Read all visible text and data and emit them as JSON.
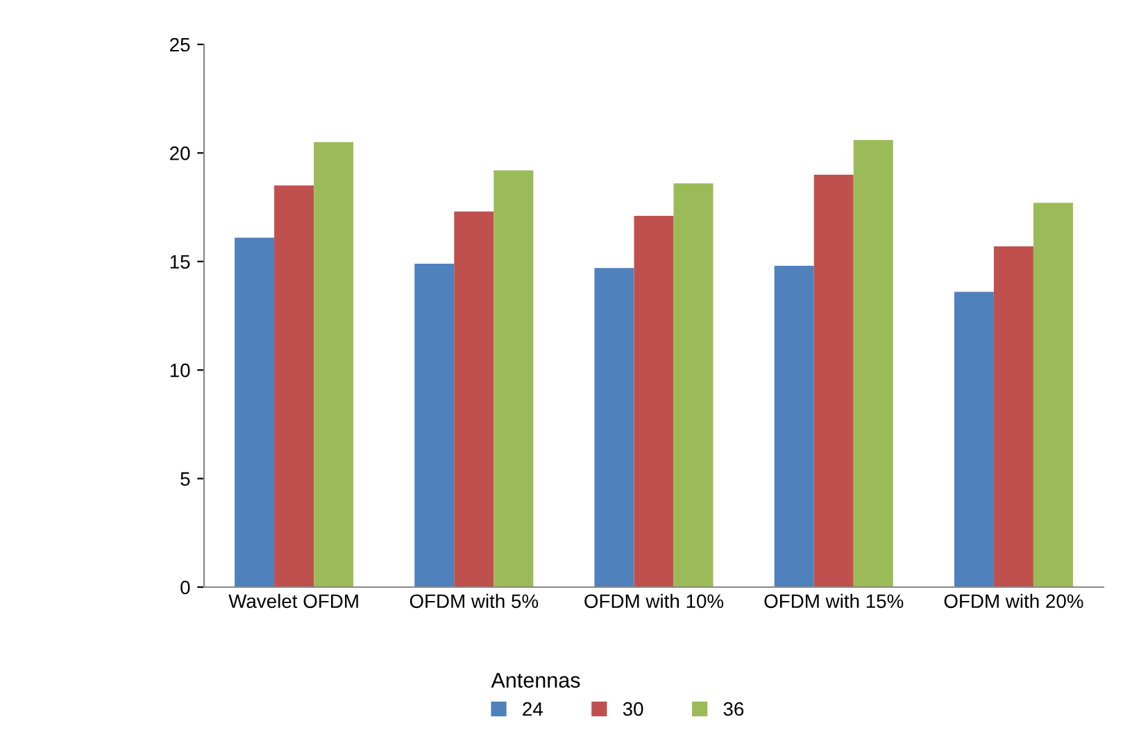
{
  "chart_data": {
    "type": "bar",
    "categories": [
      "Wavelet OFDM",
      "OFDM with 5%",
      "OFDM with 10%",
      "OFDM with 15%",
      "OFDM with 20%"
    ],
    "series": [
      {
        "name": "24",
        "color": "#4f81bd",
        "values": [
          16.1,
          14.9,
          14.7,
          14.8,
          13.6
        ]
      },
      {
        "name": "30",
        "color": "#c0504d",
        "values": [
          18.5,
          17.3,
          17.1,
          19.0,
          15.7
        ]
      },
      {
        "name": "36",
        "color": "#9bbb59",
        "values": [
          20.5,
          19.2,
          18.6,
          20.6,
          17.7
        ]
      }
    ],
    "legend_title": "Antennas",
    "legend": "bottom",
    "ylim": [
      0,
      25
    ],
    "yticks": [
      0,
      5,
      10,
      15,
      20,
      25
    ],
    "grid": false
  }
}
